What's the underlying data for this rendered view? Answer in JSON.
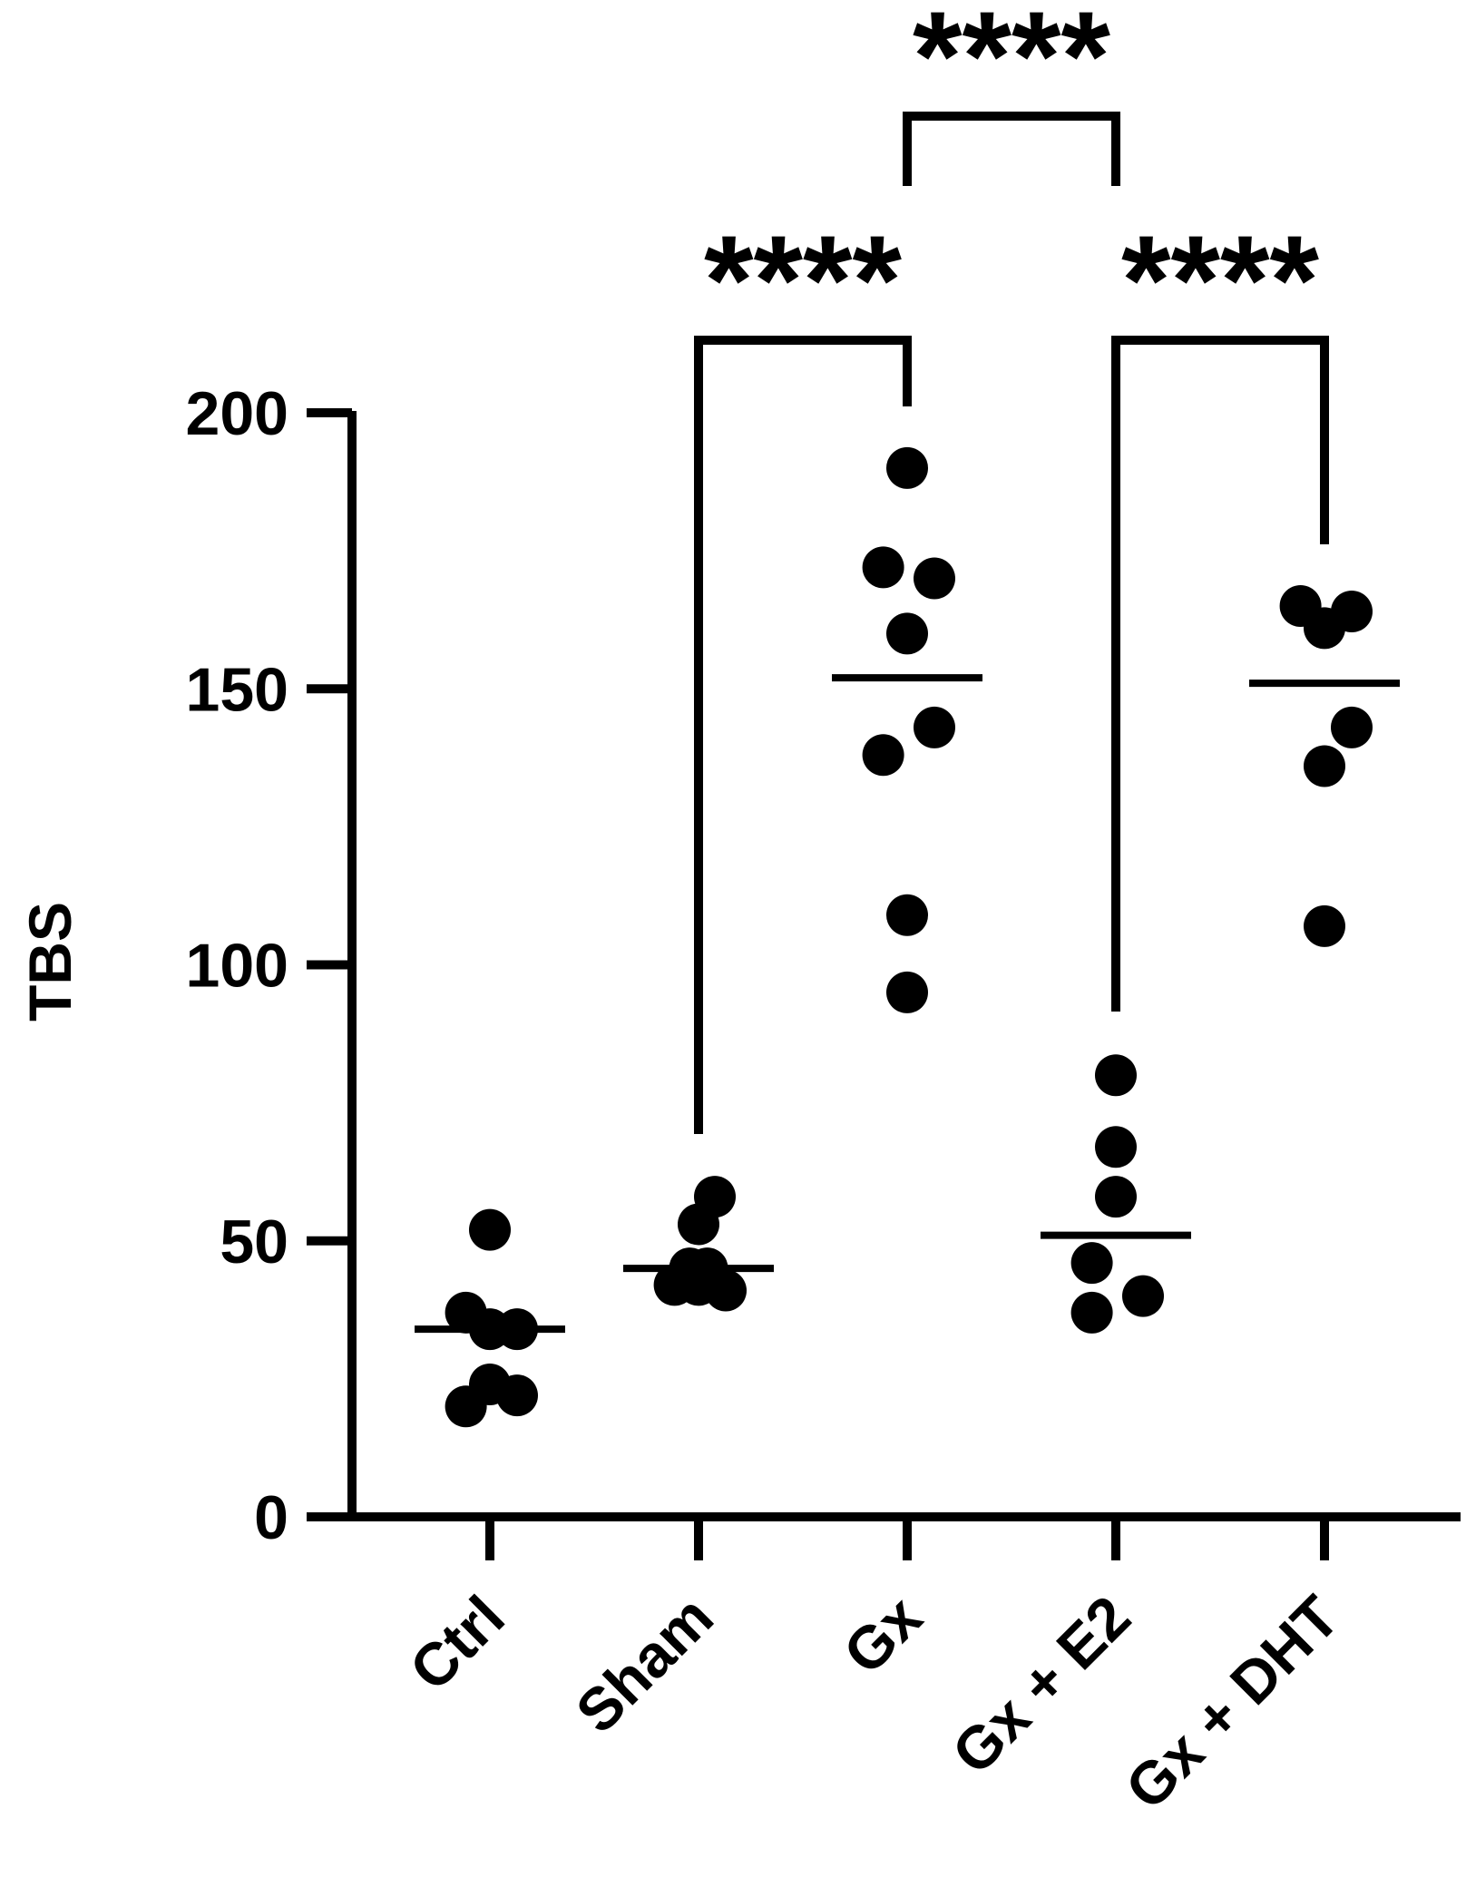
{
  "chart_data": {
    "type": "scatter",
    "title": "",
    "xlabel": "",
    "ylabel": "TBS",
    "ylim": [
      0,
      200
    ],
    "yticks": [
      0,
      50,
      100,
      150,
      200
    ],
    "ytick_labels": [
      "0",
      "50",
      "100",
      "150",
      "200"
    ],
    "grid": false,
    "categories": [
      "Ctrl",
      "Sham",
      "Gx",
      "Gx + E2",
      "Gx + DHT"
    ],
    "groups": [
      {
        "label": "Ctrl",
        "mean": 34,
        "points": [
          {
            "dx": -0.22,
            "y": 37
          },
          {
            "dx": 0.0,
            "y": 52
          },
          {
            "dx": 0.0,
            "y": 34
          },
          {
            "dx": 0.25,
            "y": 34
          },
          {
            "dx": -0.22,
            "y": 20
          },
          {
            "dx": 0.0,
            "y": 24
          },
          {
            "dx": 0.25,
            "y": 22
          }
        ]
      },
      {
        "label": "Sham",
        "mean": 45,
        "points": [
          {
            "dx": -0.22,
            "y": 42
          },
          {
            "dx": 0.0,
            "y": 42
          },
          {
            "dx": 0.25,
            "y": 41
          },
          {
            "dx": 0.0,
            "y": 53
          },
          {
            "dx": 0.15,
            "y": 58
          },
          {
            "dx": -0.08,
            "y": 45
          },
          {
            "dx": 0.08,
            "y": 45
          }
        ]
      },
      {
        "label": "Gx",
        "mean": 152,
        "points": [
          {
            "dx": 0.0,
            "y": 190
          },
          {
            "dx": -0.22,
            "y": 172
          },
          {
            "dx": 0.25,
            "y": 170
          },
          {
            "dx": 0.0,
            "y": 160
          },
          {
            "dx": -0.22,
            "y": 138
          },
          {
            "dx": 0.25,
            "y": 143
          },
          {
            "dx": 0.0,
            "y": 109
          },
          {
            "dx": 0.0,
            "y": 95
          }
        ]
      },
      {
        "label": "Gx + E2",
        "mean": 51,
        "points": [
          {
            "dx": 0.0,
            "y": 80
          },
          {
            "dx": 0.0,
            "y": 67
          },
          {
            "dx": 0.0,
            "y": 58
          },
          {
            "dx": -0.22,
            "y": 46
          },
          {
            "dx": -0.22,
            "y": 37
          },
          {
            "dx": 0.25,
            "y": 40
          }
        ]
      },
      {
        "label": "Gx + DHT",
        "mean": 151,
        "points": [
          {
            "dx": -0.22,
            "y": 165
          },
          {
            "dx": 0.0,
            "y": 161
          },
          {
            "dx": 0.25,
            "y": 164
          },
          {
            "dx": 0.25,
            "y": 143
          },
          {
            "dx": 0.0,
            "y": 136
          },
          {
            "dx": 0.0,
            "y": 107
          }
        ]
      }
    ],
    "comparisons": [
      {
        "from": "Sham",
        "to": "Gx",
        "label": "****"
      },
      {
        "from": "Gx",
        "to": "Gx + DHT",
        "label": "****"
      },
      {
        "from": "Gx",
        "to": "Gx + E2",
        "label": "****"
      }
    ],
    "colors": {
      "points": "#000000",
      "axis": "#000000"
    }
  }
}
